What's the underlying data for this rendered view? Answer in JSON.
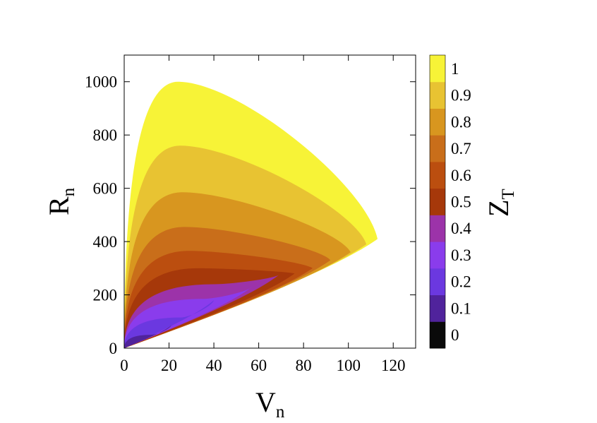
{
  "chart_data": {
    "type": "heatmap",
    "title": "",
    "xlabel": {
      "main": "V",
      "sub": "n"
    },
    "ylabel": {
      "main": "R",
      "sub": "n"
    },
    "colorbar_label": {
      "main": "Z",
      "sub": "T"
    },
    "xlim": [
      0,
      130
    ],
    "ylim": [
      0,
      1100
    ],
    "x_ticks": [
      "0",
      "20",
      "40",
      "60",
      "80",
      "100",
      "120"
    ],
    "y_ticks": [
      "0",
      "200",
      "400",
      "600",
      "800",
      "1000"
    ],
    "colorbar_ticks": [
      "0",
      "0.1",
      "0.2",
      "0.3",
      "0.4",
      "0.5",
      "0.6",
      "0.7",
      "0.8",
      "0.9",
      "1"
    ],
    "grid": false,
    "legend": "colorbar-right",
    "levels": [
      {
        "z_max": 1.0,
        "color": "#f7f337",
        "apex": [
          24,
          1000
        ],
        "tip": [
          113,
          410
        ]
      },
      {
        "z_max": 0.9,
        "color": "#e8c332",
        "apex": [
          25,
          760
        ],
        "tip": [
          108,
          390
        ]
      },
      {
        "z_max": 0.8,
        "color": "#d8961f",
        "apex": [
          26,
          585
        ],
        "tip": [
          101,
          360
        ]
      },
      {
        "z_max": 0.7,
        "color": "#c96e1a",
        "apex": [
          27,
          455
        ],
        "tip": [
          92,
          330
        ]
      },
      {
        "z_max": 0.6,
        "color": "#bb4e0f",
        "apex": [
          29,
          365
        ],
        "tip": [
          84,
          300
        ]
      },
      {
        "z_max": 0.5,
        "color": "#a6380a",
        "apex": [
          33,
          300
        ],
        "tip": [
          76,
          280
        ]
      },
      {
        "z_max": 0.4,
        "color": "#9c33a9",
        "apex": [
          40,
          240
        ],
        "tip": [
          69,
          275
        ]
      },
      {
        "z_max": 0.3,
        "color": "#8a3cec",
        "apex": [
          35,
          185
        ],
        "tip": [
          57,
          230
        ]
      },
      {
        "z_max": 0.2,
        "color": "#6b38e0",
        "apex": [
          25,
          115
        ],
        "tip": [
          40,
          180
        ]
      },
      {
        "z_max": 0.1,
        "color": "#50239c",
        "apex": [
          12,
          50
        ],
        "tip": [
          21,
          85
        ]
      },
      {
        "z_max": 0.0,
        "color": "#0a0a0a"
      }
    ]
  }
}
